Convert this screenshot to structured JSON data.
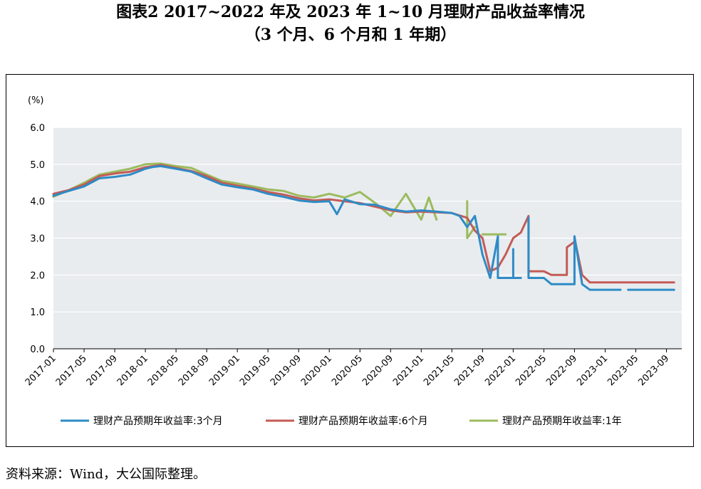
{
  "title": "图表2  2017~2022 年及 2023 年 1~10 月理财产品收益率情况",
  "subtitle": "（3 个月、6 个月和 1 年期）",
  "source": "资料来源：Wind，大公国际整理。",
  "chart_data": {
    "type": "line",
    "ylabel": "(%)",
    "ylim": [
      0.0,
      6.0
    ],
    "yticks": [
      "0.0",
      "1.0",
      "2.0",
      "3.0",
      "4.0",
      "5.0",
      "6.0"
    ],
    "xlim": [
      "2017-01",
      "2023-11"
    ],
    "xticks": [
      "2017-01",
      "2017-05",
      "2017-09",
      "2018-01",
      "2018-05",
      "2018-09",
      "2019-01",
      "2019-05",
      "2019-09",
      "2020-01",
      "2020-05",
      "2020-09",
      "2021-01",
      "2021-05",
      "2021-09",
      "2022-01",
      "2022-05",
      "2022-09",
      "2023-01",
      "2023-05",
      "2023-09"
    ],
    "grid": true,
    "legend_position": "bottom",
    "plot_background": "#e8ecef",
    "series": [
      {
        "name": "理财产品预期年收益率:3个月",
        "color": "#2e8bc6",
        "points": [
          [
            "2017-01",
            4.15
          ],
          [
            "2017-03",
            4.28
          ],
          [
            "2017-05",
            4.4
          ],
          [
            "2017-07",
            4.62
          ],
          [
            "2017-09",
            4.66
          ],
          [
            "2017-11",
            4.72
          ],
          [
            "2018-01",
            4.88
          ],
          [
            "2018-02",
            4.93
          ],
          [
            "2018-03",
            4.95
          ],
          [
            "2018-05",
            4.88
          ],
          [
            "2018-07",
            4.8
          ],
          [
            "2018-09",
            4.62
          ],
          [
            "2018-11",
            4.45
          ],
          [
            "2019-01",
            4.38
          ],
          [
            "2019-03",
            4.32
          ],
          [
            "2019-05",
            4.2
          ],
          [
            "2019-07",
            4.12
          ],
          [
            "2019-09",
            4.02
          ],
          [
            "2019-11",
            3.98
          ],
          [
            "2020-01",
            4.0
          ],
          [
            "2020-02",
            3.65
          ],
          [
            "2020-03",
            4.05
          ],
          [
            "2020-05",
            3.92
          ],
          [
            "2020-07",
            3.9
          ],
          [
            "2020-09",
            3.78
          ],
          [
            "2020-11",
            3.72
          ],
          [
            "2021-01",
            3.75
          ],
          [
            "2021-03",
            3.72
          ],
          [
            "2021-05",
            3.68
          ],
          [
            "2021-06",
            3.6
          ],
          [
            "2021-07",
            3.3
          ],
          [
            "2021-08",
            3.6
          ],
          [
            "2021-09",
            2.55
          ],
          [
            "2021-10",
            1.92
          ],
          [
            "2021-11",
            3.05
          ],
          [
            "2021-11",
            1.92
          ],
          [
            "2022-01",
            1.92
          ],
          [
            "2022-01",
            2.7
          ],
          [
            "2022-01",
            1.92
          ],
          [
            "2022-02",
            1.92
          ]
        ],
        "segments_after_gap": [
          [
            [
              "2022-03",
              1.92
            ],
            [
              "2022-03",
              3.55
            ],
            [
              "2022-03",
              1.92
            ],
            [
              "2022-05",
              1.92
            ],
            [
              "2022-06",
              1.75
            ],
            [
              "2022-09",
              1.75
            ],
            [
              "2022-09",
              3.05
            ],
            [
              "2022-10",
              1.75
            ],
            [
              "2022-11",
              1.6
            ],
            [
              "2023-03",
              1.6
            ]
          ],
          [
            [
              "2023-04",
              1.6
            ],
            [
              "2023-10",
              1.6
            ]
          ]
        ]
      },
      {
        "name": "理财产品预期年收益率:6个月",
        "color": "#c45b56",
        "points": [
          [
            "2017-01",
            4.2
          ],
          [
            "2017-03",
            4.3
          ],
          [
            "2017-05",
            4.45
          ],
          [
            "2017-07",
            4.68
          ],
          [
            "2017-09",
            4.75
          ],
          [
            "2017-11",
            4.8
          ],
          [
            "2018-01",
            4.92
          ],
          [
            "2018-03",
            4.98
          ],
          [
            "2018-05",
            4.9
          ],
          [
            "2018-07",
            4.82
          ],
          [
            "2018-09",
            4.68
          ],
          [
            "2018-11",
            4.5
          ],
          [
            "2019-01",
            4.42
          ],
          [
            "2019-03",
            4.35
          ],
          [
            "2019-05",
            4.25
          ],
          [
            "2019-07",
            4.18
          ],
          [
            "2019-09",
            4.08
          ],
          [
            "2019-11",
            4.02
          ],
          [
            "2020-01",
            4.05
          ],
          [
            "2020-03",
            4.0
          ],
          [
            "2020-05",
            3.95
          ],
          [
            "2020-07",
            3.85
          ],
          [
            "2020-09",
            3.75
          ],
          [
            "2020-11",
            3.7
          ],
          [
            "2021-01",
            3.72
          ],
          [
            "2021-03",
            3.7
          ],
          [
            "2021-05",
            3.68
          ],
          [
            "2021-07",
            3.55
          ],
          [
            "2021-08",
            3.2
          ],
          [
            "2021-09",
            3.0
          ],
          [
            "2021-10",
            2.1
          ],
          [
            "2021-11",
            2.2
          ],
          [
            "2021-12",
            2.55
          ],
          [
            "2022-01",
            3.0
          ],
          [
            "2022-02",
            3.15
          ],
          [
            "2022-03",
            3.6
          ],
          [
            "2022-03",
            2.1
          ],
          [
            "2022-05",
            2.1
          ],
          [
            "2022-06",
            2.0
          ],
          [
            "2022-08",
            2.0
          ],
          [
            "2022-08",
            2.75
          ],
          [
            "2022-09",
            2.9
          ],
          [
            "2022-09",
            3.0
          ],
          [
            "2022-10",
            2.0
          ],
          [
            "2022-11",
            1.8
          ],
          [
            "2023-04",
            1.8
          ],
          [
            "2023-10",
            1.8
          ]
        ]
      },
      {
        "name": "理财产品预期年收益率:1年",
        "color": "#9cbb5e",
        "points": [
          [
            "2017-01",
            4.12
          ],
          [
            "2017-03",
            4.3
          ],
          [
            "2017-05",
            4.5
          ],
          [
            "2017-07",
            4.72
          ],
          [
            "2017-09",
            4.8
          ],
          [
            "2017-11",
            4.88
          ],
          [
            "2018-01",
            5.0
          ],
          [
            "2018-03",
            5.02
          ],
          [
            "2018-05",
            4.95
          ],
          [
            "2018-07",
            4.9
          ],
          [
            "2018-09",
            4.72
          ],
          [
            "2018-11",
            4.55
          ],
          [
            "2019-01",
            4.48
          ],
          [
            "2019-03",
            4.4
          ],
          [
            "2019-05",
            4.32
          ],
          [
            "2019-07",
            4.28
          ],
          [
            "2019-09",
            4.15
          ],
          [
            "2019-11",
            4.1
          ],
          [
            "2020-01",
            4.2
          ],
          [
            "2020-03",
            4.1
          ],
          [
            "2020-05",
            4.25
          ],
          [
            "2020-07",
            3.95
          ],
          [
            "2020-09",
            3.6
          ],
          [
            "2020-11",
            4.2
          ],
          [
            "2021-01",
            3.5
          ],
          [
            "2021-02",
            4.1
          ],
          [
            "2021-03",
            3.5
          ]
        ],
        "segments_after_gap": [
          [
            [
              "2021-07",
              4.0
            ],
            [
              "2021-07",
              3.0
            ],
            [
              "2021-08",
              3.3
            ]
          ],
          [
            [
              "2021-09",
              3.1
            ],
            [
              "2021-12",
              3.1
            ]
          ]
        ]
      }
    ]
  }
}
